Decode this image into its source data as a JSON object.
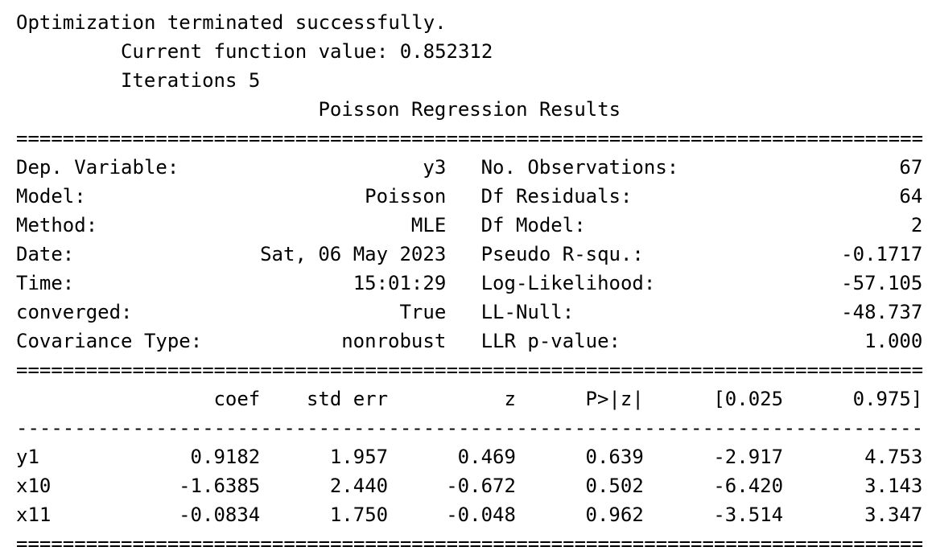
{
  "header": {
    "lines": [
      "Optimization terminated successfully.",
      "Current function value: 0.852312",
      "Iterations 5"
    ]
  },
  "title": "Poisson Regression Results",
  "separators": {
    "double": "==============================================================================",
    "single": "------------------------------------------------------------------------------"
  },
  "summary": {
    "rows": [
      [
        "Dep. Variable:",
        "y3",
        "No. Observations:",
        "67"
      ],
      [
        "Model:",
        "Poisson",
        "Df Residuals:",
        "64"
      ],
      [
        "Method:",
        "MLE",
        "Df Model:",
        "2"
      ],
      [
        "Date:",
        "Sat, 06 May 2023",
        "Pseudo R-squ.:",
        "-0.1717"
      ],
      [
        "Time:",
        "15:01:29",
        "Log-Likelihood:",
        "-57.105"
      ],
      [
        "converged:",
        "True",
        "LL-Null:",
        "-48.737"
      ],
      [
        "Covariance Type:",
        "nonrobust",
        "LLR p-value:",
        "1.000"
      ]
    ]
  },
  "coef_table": {
    "columns": [
      "coef",
      "std err",
      "z",
      "P>|z|",
      "[0.025",
      "0.975]"
    ],
    "rows": [
      {
        "name": "y1",
        "values": [
          "0.9182",
          "1.957",
          "0.469",
          "0.639",
          "-2.917",
          "4.753"
        ]
      },
      {
        "name": "x10",
        "values": [
          "-1.6385",
          "2.440",
          "-0.672",
          "0.502",
          "-6.420",
          "3.143"
        ]
      },
      {
        "name": "x11",
        "values": [
          "-0.0834",
          "1.750",
          "-0.048",
          "0.962",
          "-3.514",
          "3.347"
        ]
      }
    ]
  }
}
